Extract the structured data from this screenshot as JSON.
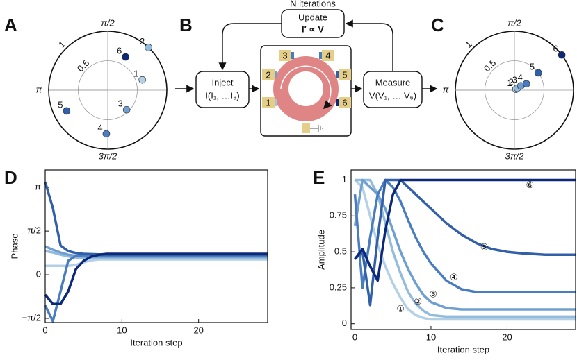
{
  "panels": [
    "A",
    "B",
    "C",
    "D",
    "E"
  ],
  "diagram": {
    "loop_label": "N iterations",
    "update": {
      "title": "Update",
      "formula": "I′ ∝ V"
    },
    "inject": {
      "title": "Inject",
      "formula": "I(I₁, …I₆)"
    },
    "measure": {
      "title": "Measure",
      "formula": "V(V₁, … V₆)"
    },
    "pads": [
      "1",
      "2",
      "3",
      "4",
      "5",
      "6"
    ]
  },
  "chart_data": [
    {
      "type": "polar",
      "rlim": [
        0,
        1
      ],
      "rticks": [
        0.5,
        1
      ],
      "angle_ticks": [
        {
          "value": 1.5708,
          "label": "π/2"
        },
        {
          "value": 3.1416,
          "label": "π"
        },
        {
          "value": 4.7124,
          "label": "3π/2"
        }
      ],
      "points": [
        {
          "name": "1",
          "r": 0.61,
          "theta": 0.29,
          "color": "#b3d0e6"
        },
        {
          "name": "2",
          "r": 1.0,
          "theta": 0.81,
          "color": "#93bbdc"
        },
        {
          "name": "3",
          "r": 0.46,
          "theta": 5.48,
          "color": "#6f9fd0"
        },
        {
          "name": "4",
          "r": 0.74,
          "theta": 4.68,
          "color": "#4a7dc0"
        },
        {
          "name": "5",
          "r": 0.78,
          "theta": 3.61,
          "color": "#3260a8"
        },
        {
          "name": "6",
          "r": 0.64,
          "theta": 1.08,
          "color": "#0c2878"
        }
      ]
    },
    {
      "type": "polar",
      "rlim": [
        0,
        1
      ],
      "rticks": [
        0.5,
        1
      ],
      "angle_ticks": [
        {
          "value": 1.5708,
          "label": "π/2"
        },
        {
          "value": 3.1416,
          "label": "π"
        },
        {
          "value": 4.7124,
          "label": "3π/2"
        }
      ],
      "points": [
        {
          "name": "1",
          "r": 0.03,
          "theta": 0.55,
          "color": "#b3d0e6"
        },
        {
          "name": "2",
          "r": 0.06,
          "theta": 0.6,
          "color": "#93bbdc"
        },
        {
          "name": "3",
          "r": 0.13,
          "theta": 0.59,
          "color": "#6f9fd0"
        },
        {
          "name": "4",
          "r": 0.23,
          "theta": 0.49,
          "color": "#4a7dc0"
        },
        {
          "name": "5",
          "r": 0.5,
          "theta": 0.63,
          "color": "#3260a8"
        },
        {
          "name": "6",
          "r": 1.0,
          "theta": 0.64,
          "color": "#0c2878"
        }
      ]
    },
    {
      "type": "line",
      "xlabel": "Iteration step",
      "ylabel": "Phase",
      "xlim": [
        0,
        29
      ],
      "ylim": [
        -1.72,
        3.77
      ],
      "xticks": [
        0,
        10,
        20
      ],
      "yticks": [
        {
          "value": -1.5708,
          "label": "−π/2"
        },
        0,
        {
          "value": 1.5708,
          "label": "π/2"
        },
        {
          "value": 3.1416,
          "label": "π"
        }
      ],
      "x": [
        0,
        1,
        2,
        3,
        4,
        5,
        6,
        7,
        8,
        9,
        10,
        12,
        14,
        16,
        18,
        20,
        22,
        25,
        29
      ],
      "series": [
        {
          "color": "#b3d0e6",
          "values": [
            0.32,
            0.32,
            0.32,
            0.32,
            0.35,
            0.45,
            0.52,
            0.55,
            0.55,
            0.55,
            0.55,
            0.55,
            0.55,
            0.55,
            0.55,
            0.55,
            0.55,
            0.55,
            0.55
          ]
        },
        {
          "color": "#93bbdc",
          "values": [
            0.85,
            0.8,
            0.72,
            0.66,
            0.62,
            0.6,
            0.6,
            0.6,
            0.6,
            0.6,
            0.6,
            0.6,
            0.6,
            0.6,
            0.6,
            0.6,
            0.6,
            0.6,
            0.6
          ]
        },
        {
          "color": "#6f9fd0",
          "values": [
            1.02,
            0.9,
            0.8,
            0.72,
            0.68,
            0.66,
            0.65,
            0.65,
            0.65,
            0.65,
            0.65,
            0.65,
            0.65,
            0.65,
            0.65,
            0.65,
            0.65,
            0.65,
            0.65
          ]
        },
        {
          "color": "#4a7dc0",
          "values": [
            -1.1,
            -1.67,
            -0.6,
            0.5,
            0.68,
            0.7,
            0.7,
            0.68,
            0.68,
            0.68,
            0.68,
            0.68,
            0.68,
            0.68,
            0.68,
            0.68,
            0.68,
            0.68,
            0.68
          ]
        },
        {
          "color": "#3260a8",
          "values": [
            3.34,
            2.4,
            1.05,
            0.85,
            0.78,
            0.75,
            0.74,
            0.73,
            0.72,
            0.72,
            0.72,
            0.72,
            0.72,
            0.72,
            0.72,
            0.72,
            0.72,
            0.72,
            0.72
          ]
        },
        {
          "color": "#0c2878",
          "values": [
            -0.72,
            -1.05,
            -1.05,
            -0.6,
            0.2,
            0.5,
            0.65,
            0.72,
            0.75,
            0.75,
            0.75,
            0.75,
            0.75,
            0.75,
            0.75,
            0.75,
            0.75,
            0.75,
            0.75
          ]
        }
      ]
    },
    {
      "type": "line",
      "xlabel": "Iteration step",
      "ylabel": "Amplitude",
      "xlim": [
        -0.5,
        29
      ],
      "ylim": [
        -0.04,
        1.07
      ],
      "xticks": [
        0,
        10,
        20
      ],
      "yticks": [
        0,
        0.25,
        0.5,
        0.75,
        1
      ],
      "x": [
        0,
        1,
        2,
        3,
        4,
        5,
        6,
        7,
        8,
        9,
        10,
        12,
        14,
        16,
        18,
        20,
        22,
        25,
        29
      ],
      "series": [
        {
          "color": "#b3d0e6",
          "values": [
            1,
            0.95,
            0.75,
            0.55,
            0.4,
            0.28,
            0.18,
            0.1,
            0.06,
            0.04,
            0.03,
            0.03,
            0.03,
            0.03,
            0.03,
            0.03,
            0.03,
            0.03,
            0.03
          ]
        },
        {
          "color": "#93bbdc",
          "values": [
            1,
            1,
            1,
            0.9,
            0.7,
            0.5,
            0.35,
            0.22,
            0.14,
            0.09,
            0.06,
            0.05,
            0.05,
            0.05,
            0.05,
            0.05,
            0.05,
            0.05,
            0.05
          ]
        },
        {
          "color": "#6f9fd0",
          "values": [
            0.68,
            1,
            0.95,
            0.9,
            0.8,
            0.65,
            0.5,
            0.38,
            0.28,
            0.2,
            0.15,
            0.11,
            0.1,
            0.1,
            0.1,
            0.1,
            0.1,
            0.1,
            0.1
          ]
        },
        {
          "color": "#4a7dc0",
          "values": [
            0.9,
            0.25,
            0.6,
            0.9,
            1,
            0.95,
            0.85,
            0.72,
            0.6,
            0.5,
            0.42,
            0.3,
            0.24,
            0.22,
            0.22,
            0.22,
            0.22,
            0.22,
            0.22
          ]
        },
        {
          "color": "#3260a8",
          "values": [
            0.45,
            0.5,
            0.13,
            0.6,
            1,
            1,
            1,
            0.95,
            0.9,
            0.85,
            0.8,
            0.7,
            0.62,
            0.56,
            0.52,
            0.5,
            0.49,
            0.48,
            0.48
          ]
        },
        {
          "color": "#0c2878",
          "values": [
            0.45,
            0.52,
            0.4,
            0.3,
            0.65,
            0.9,
            1,
            1,
            1,
            1,
            1,
            1,
            1,
            1,
            1,
            1,
            1,
            1,
            1
          ]
        }
      ],
      "annotations": [
        {
          "text": "①",
          "x": 6,
          "y": 0.1
        },
        {
          "text": "②",
          "x": 8.3,
          "y": 0.15
        },
        {
          "text": "③",
          "x": 10.3,
          "y": 0.2
        },
        {
          "text": "④",
          "x": 13,
          "y": 0.32
        },
        {
          "text": "⑤",
          "x": 17,
          "y": 0.53
        },
        {
          "text": "⑥",
          "x": 23,
          "y": 0.96
        }
      ]
    }
  ]
}
